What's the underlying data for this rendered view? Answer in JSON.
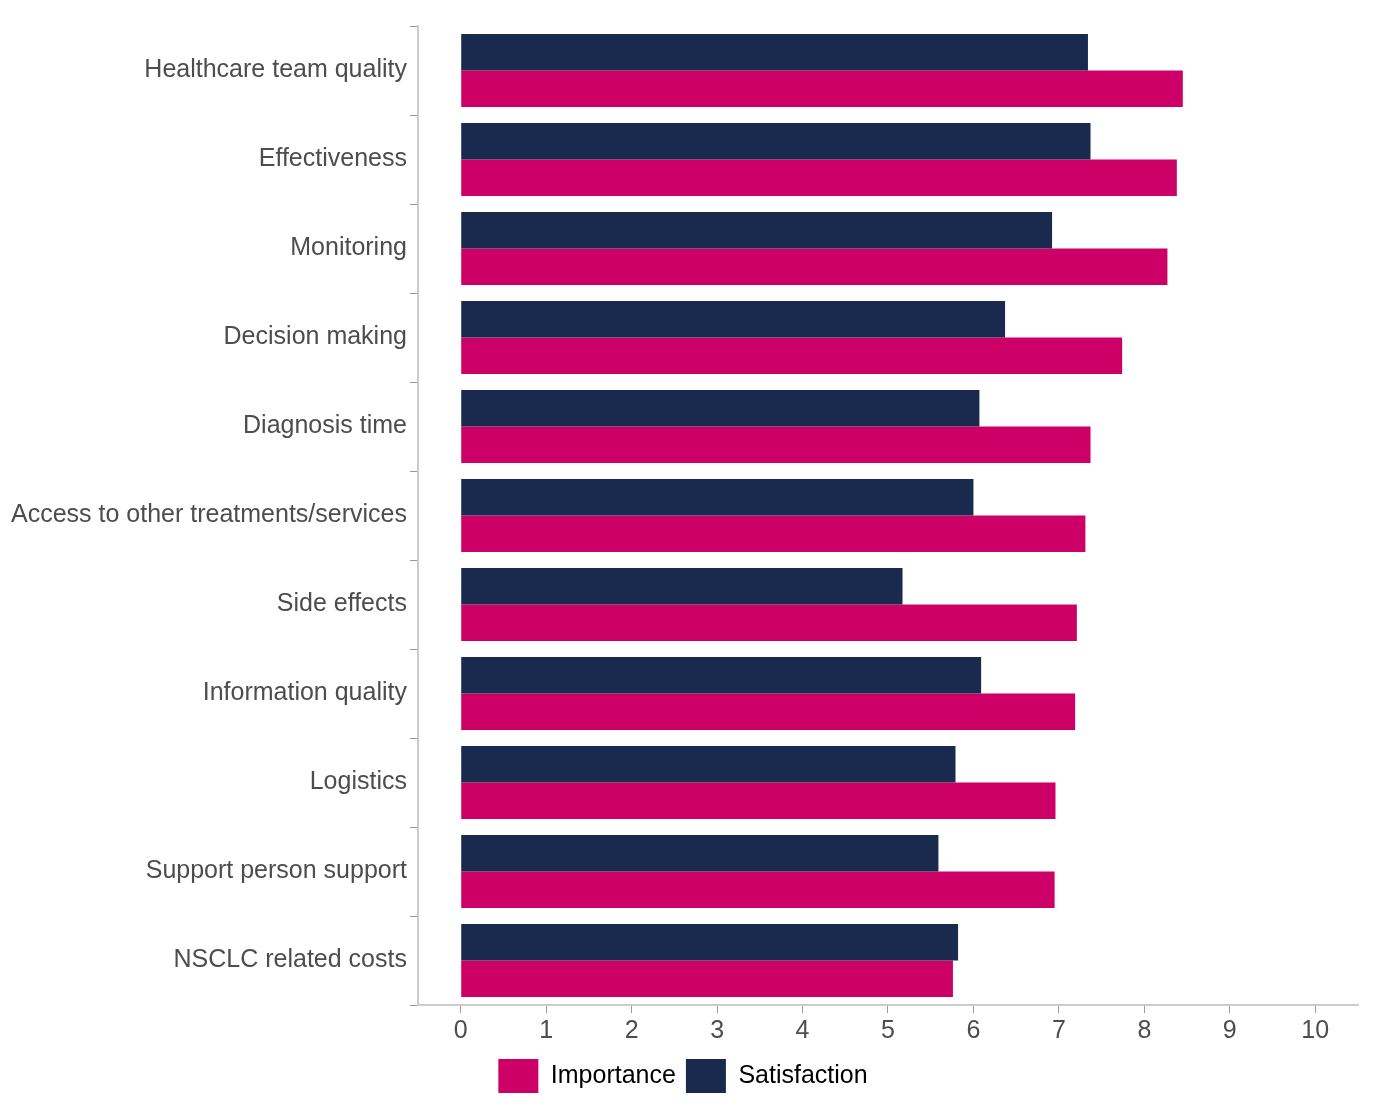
{
  "chart_data": {
    "type": "bar",
    "orientation": "horizontal",
    "categories": [
      "Healthcare team quality",
      "Effectiveness",
      "Monitoring",
      "Decision making",
      "Diagnosis time",
      "Access to other treatments/services",
      "Side effects",
      "Information quality",
      "Logistics",
      "Support person support",
      "NSCLC related costs"
    ],
    "series": [
      {
        "name": "Satisfaction",
        "color": "#1a2a4e",
        "values": [
          7.34,
          7.37,
          6.92,
          6.37,
          6.07,
          6.0,
          5.17,
          6.09,
          5.79,
          5.59,
          5.82
        ]
      },
      {
        "name": "Importance",
        "color": "#cc0066",
        "values": [
          8.45,
          8.38,
          8.27,
          7.74,
          7.37,
          7.31,
          7.21,
          7.19,
          6.96,
          6.95,
          5.76
        ]
      }
    ],
    "xlim": [
      -0.5,
      10.5
    ],
    "xticks": [
      0,
      1,
      2,
      3,
      4,
      5,
      6,
      7,
      8,
      9,
      10
    ],
    "grid": false,
    "legend": "bottom"
  }
}
